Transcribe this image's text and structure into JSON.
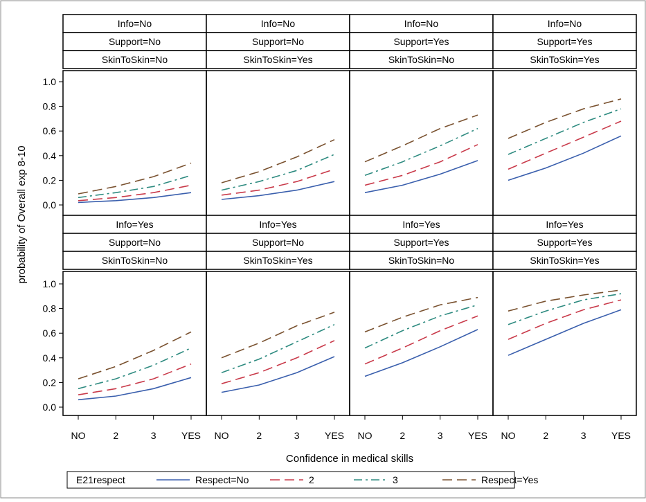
{
  "chart_data": {
    "type": "line",
    "ylabel": "probability of Overall exp 8-10",
    "xlabel": "Confidence in medical skills",
    "categories": [
      "NO",
      "2",
      "3",
      "YES"
    ],
    "ylim": [
      0,
      1
    ],
    "yticks": [
      "0.0",
      "0.2",
      "0.4",
      "0.6",
      "0.8",
      "1.0"
    ],
    "grid": false,
    "legend": {
      "title": "E21respect",
      "placement": "bottom",
      "entries": [
        "Respect=No",
        "2",
        "3",
        "Respect=Yes"
      ]
    },
    "series_styles": [
      {
        "name": "Respect=No",
        "color": "#3a5fad",
        "dash": "solid"
      },
      {
        "name": "2",
        "color": "#c93a4a",
        "dash": "long-dash"
      },
      {
        "name": "3",
        "color": "#2e8b80",
        "dash": "dash-dot"
      },
      {
        "name": "Respect=Yes",
        "color": "#7a5230",
        "dash": "long-dash"
      }
    ],
    "panels": [
      {
        "headers": [
          "Info=No",
          "Support=No",
          "SkinToSkin=No"
        ],
        "series": [
          {
            "name": "Respect=No",
            "values": [
              0.02,
              0.035,
              0.06,
              0.1
            ]
          },
          {
            "name": "2",
            "values": [
              0.035,
              0.06,
              0.1,
              0.16
            ]
          },
          {
            "name": "3",
            "values": [
              0.06,
              0.1,
              0.15,
              0.24
            ]
          },
          {
            "name": "Respect=Yes",
            "values": [
              0.09,
              0.15,
              0.23,
              0.34
            ]
          }
        ]
      },
      {
        "headers": [
          "Info=No",
          "Support=No",
          "SkinToSkin=Yes"
        ],
        "series": [
          {
            "name": "Respect=No",
            "values": [
              0.045,
              0.075,
              0.12,
              0.19
            ]
          },
          {
            "name": "2",
            "values": [
              0.08,
              0.12,
              0.19,
              0.29
            ]
          },
          {
            "name": "3",
            "values": [
              0.12,
              0.19,
              0.28,
              0.41
            ]
          },
          {
            "name": "Respect=Yes",
            "values": [
              0.18,
              0.27,
              0.39,
              0.53
            ]
          }
        ]
      },
      {
        "headers": [
          "Info=No",
          "Support=Yes",
          "SkinToSkin=No"
        ],
        "series": [
          {
            "name": "Respect=No",
            "values": [
              0.1,
              0.16,
              0.25,
              0.36
            ]
          },
          {
            "name": "2",
            "values": [
              0.16,
              0.24,
              0.35,
              0.49
            ]
          },
          {
            "name": "3",
            "values": [
              0.24,
              0.35,
              0.48,
              0.62
            ]
          },
          {
            "name": "Respect=Yes",
            "values": [
              0.35,
              0.48,
              0.62,
              0.73
            ]
          }
        ]
      },
      {
        "headers": [
          "Info=No",
          "Support=Yes",
          "SkinToSkin=Yes"
        ],
        "series": [
          {
            "name": "Respect=No",
            "values": [
              0.2,
              0.3,
              0.42,
              0.56
            ]
          },
          {
            "name": "2",
            "values": [
              0.29,
              0.42,
              0.55,
              0.68
            ]
          },
          {
            "name": "3",
            "values": [
              0.41,
              0.54,
              0.67,
              0.78
            ]
          },
          {
            "name": "Respect=Yes",
            "values": [
              0.54,
              0.67,
              0.78,
              0.86
            ]
          }
        ]
      },
      {
        "headers": [
          "Info=Yes",
          "Support=No",
          "SkinToSkin=No"
        ],
        "series": [
          {
            "name": "Respect=No",
            "values": [
              0.06,
              0.09,
              0.15,
              0.24
            ]
          },
          {
            "name": "2",
            "values": [
              0.1,
              0.15,
              0.23,
              0.35
            ]
          },
          {
            "name": "3",
            "values": [
              0.15,
              0.23,
              0.34,
              0.48
            ]
          },
          {
            "name": "Respect=Yes",
            "values": [
              0.23,
              0.33,
              0.46,
              0.61
            ]
          }
        ]
      },
      {
        "headers": [
          "Info=Yes",
          "Support=No",
          "SkinToSkin=Yes"
        ],
        "series": [
          {
            "name": "Respect=No",
            "values": [
              0.12,
              0.18,
              0.28,
              0.41
            ]
          },
          {
            "name": "2",
            "values": [
              0.19,
              0.28,
              0.4,
              0.54
            ]
          },
          {
            "name": "3",
            "values": [
              0.28,
              0.39,
              0.53,
              0.67
            ]
          },
          {
            "name": "Respect=Yes",
            "values": [
              0.4,
              0.52,
              0.66,
              0.77
            ]
          }
        ]
      },
      {
        "headers": [
          "Info=Yes",
          "Support=Yes",
          "SkinToSkin=No"
        ],
        "series": [
          {
            "name": "Respect=No",
            "values": [
              0.25,
              0.36,
              0.49,
              0.63
            ]
          },
          {
            "name": "2",
            "values": [
              0.35,
              0.48,
              0.62,
              0.74
            ]
          },
          {
            "name": "3",
            "values": [
              0.48,
              0.62,
              0.74,
              0.83
            ]
          },
          {
            "name": "Respect=Yes",
            "values": [
              0.61,
              0.73,
              0.83,
              0.89
            ]
          }
        ]
      },
      {
        "headers": [
          "Info=Yes",
          "Support=Yes",
          "SkinToSkin=Yes"
        ],
        "series": [
          {
            "name": "Respect=No",
            "values": [
              0.42,
              0.55,
              0.68,
              0.79
            ]
          },
          {
            "name": "2",
            "values": [
              0.55,
              0.68,
              0.79,
              0.87
            ]
          },
          {
            "name": "3",
            "values": [
              0.67,
              0.78,
              0.87,
              0.92
            ]
          },
          {
            "name": "Respect=Yes",
            "values": [
              0.78,
              0.86,
              0.91,
              0.95
            ]
          }
        ]
      }
    ]
  }
}
